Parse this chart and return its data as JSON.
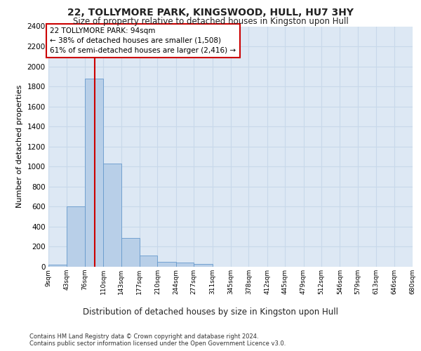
{
  "title1": "22, TOLLYMORE PARK, KINGSWOOD, HULL, HU7 3HY",
  "title2": "Size of property relative to detached houses in Kingston upon Hull",
  "xlabel": "Distribution of detached houses by size in Kingston upon Hull",
  "ylabel": "Number of detached properties",
  "footer1": "Contains HM Land Registry data © Crown copyright and database right 2024.",
  "footer2": "Contains public sector information licensed under the Open Government Licence v3.0.",
  "annotation_line1": "22 TOLLYMORE PARK: 94sqm",
  "annotation_line2": "← 38% of detached houses are smaller (1,508)",
  "annotation_line3": "61% of semi-detached houses are larger (2,416) →",
  "property_size": 94,
  "bin_edges": [
    9,
    43,
    76,
    110,
    143,
    177,
    210,
    244,
    277,
    311,
    345,
    378,
    412,
    445,
    479,
    512,
    546,
    579,
    613,
    646,
    680
  ],
  "bin_labels": [
    "9sqm",
    "43sqm",
    "76sqm",
    "110sqm",
    "143sqm",
    "177sqm",
    "210sqm",
    "244sqm",
    "277sqm",
    "311sqm",
    "345sqm",
    "378sqm",
    "412sqm",
    "445sqm",
    "479sqm",
    "512sqm",
    "546sqm",
    "579sqm",
    "613sqm",
    "646sqm",
    "680sqm"
  ],
  "bar_values": [
    20,
    600,
    1880,
    1030,
    285,
    115,
    50,
    40,
    30,
    0,
    0,
    0,
    0,
    0,
    0,
    0,
    0,
    0,
    0,
    0
  ],
  "bar_color": "#b8cfe8",
  "bar_edge_color": "#6699cc",
  "grid_color": "#c8d8ea",
  "background_color": "#dde8f4",
  "vline_color": "#cc0000",
  "annotation_box_edgecolor": "#cc0000",
  "annotation_box_facecolor": "#ffffff",
  "ylim": [
    0,
    2400
  ],
  "yticks": [
    0,
    200,
    400,
    600,
    800,
    1000,
    1200,
    1400,
    1600,
    1800,
    2000,
    2200,
    2400
  ]
}
